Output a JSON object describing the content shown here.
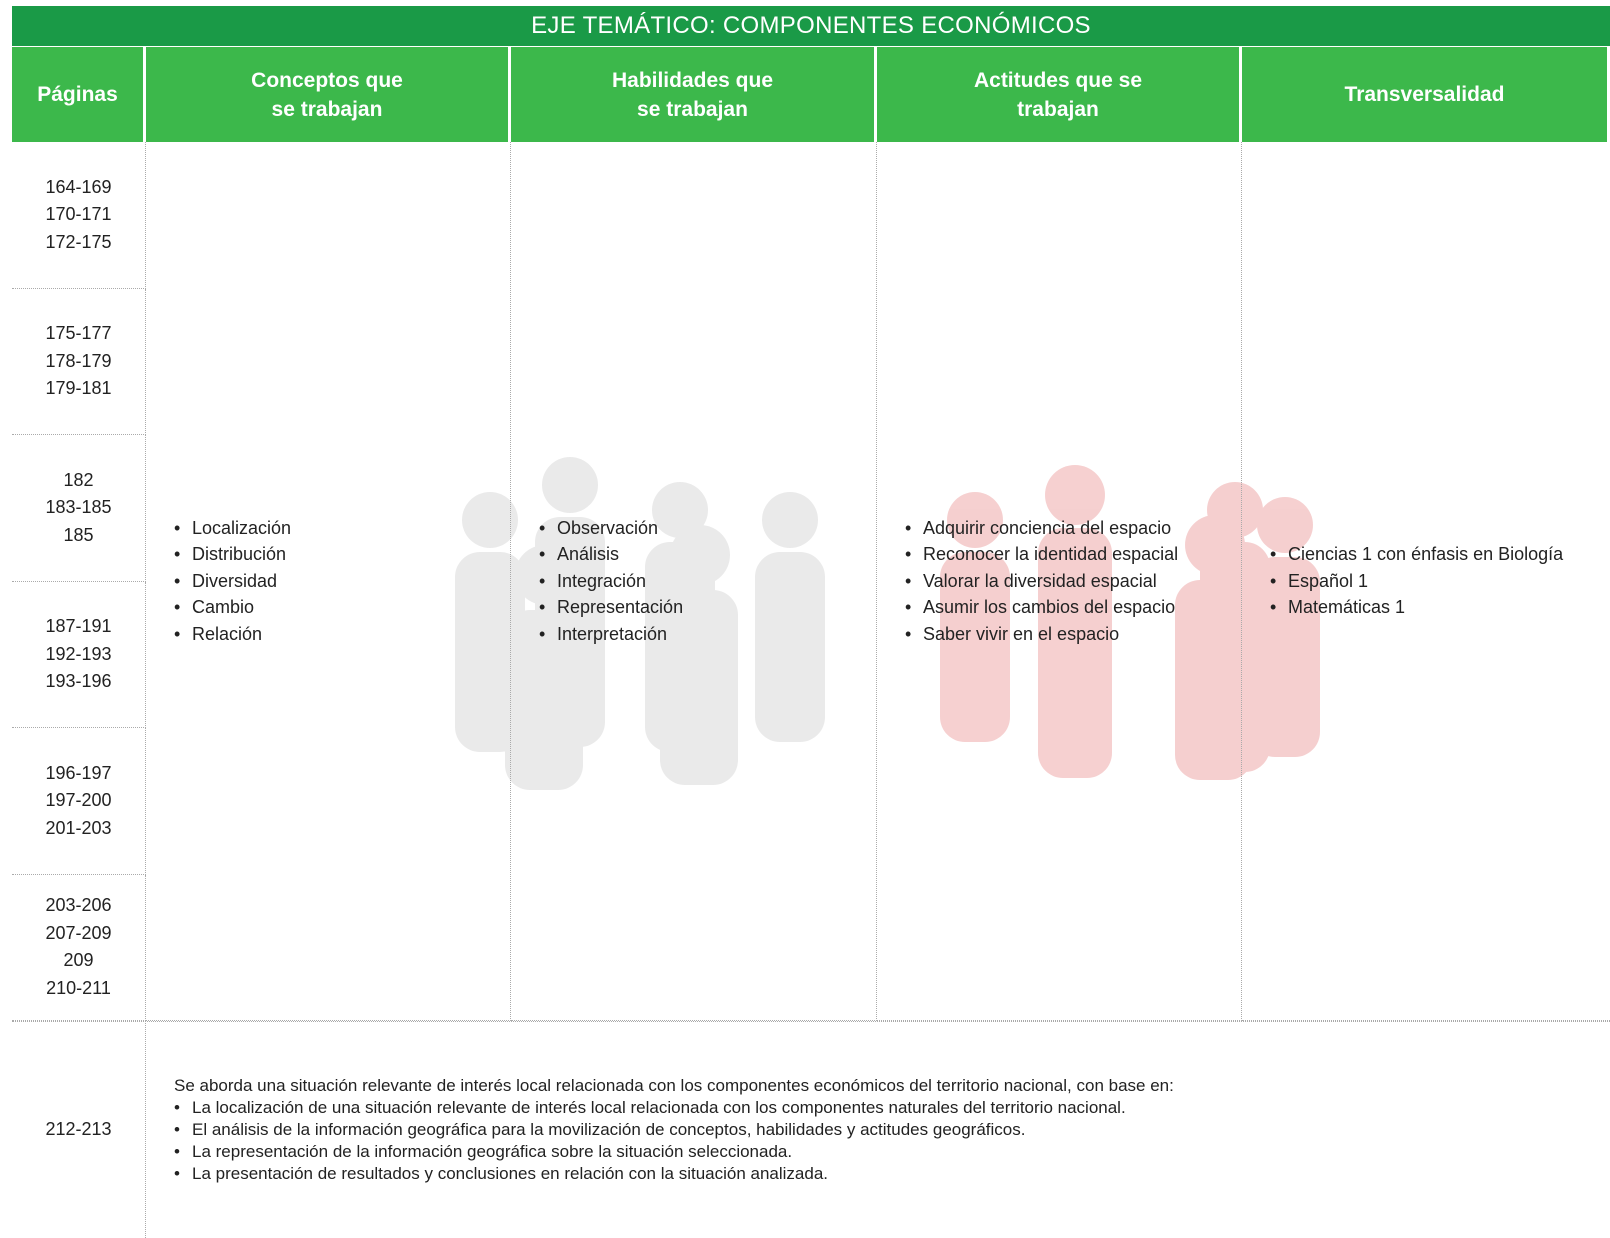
{
  "header": {
    "title": "EJE TEMÁTICO: COMPONENTES ECONÓMICOS"
  },
  "table": {
    "columns": [
      "Páginas",
      "Conceptos que se trabajan",
      "Habilidades que se trabajan",
      "Actitudes que se trabajan",
      "Transversalidad"
    ],
    "page_groups": [
      [
        "164-169",
        "170-171",
        "172-175"
      ],
      [
        "175-177",
        "178-179",
        "179-181"
      ],
      [
        "182",
        "183-185",
        "185"
      ],
      [
        "187-191",
        "192-193",
        "193-196"
      ],
      [
        "196-197",
        "197-200",
        "201-203"
      ],
      [
        "203-206",
        "207-209",
        "209",
        "210-211"
      ]
    ],
    "concepts": [
      "Localización",
      "Distribución",
      "Diversidad",
      "Cambio",
      "Relación"
    ],
    "skills": [
      "Observación",
      "Análisis",
      "Integración",
      "Representación",
      "Interpretación"
    ],
    "attitudes": [
      "Adquirir conciencia del espacio",
      "Reconocer la identidad espacial",
      "Valorar la diversidad espacial",
      "Asumir los cambios del espacio",
      "Saber vivir en el espacio"
    ],
    "transversal": [
      "Ciencias 1 con énfasis en Biología",
      "Español 1",
      "Matemáticas 1"
    ],
    "final_row": {
      "pages": "212-213",
      "intro": "Se aborda una situación relevante de interés local relacionada con los componentes económicos del territorio nacional, con base en:",
      "bullets": [
        "La localización de una situación relevante de interés local relacionada con los componentes naturales del territorio nacional.",
        "El análisis de la información geográfica para la movilización de conceptos, habilidades y actitudes geográficos.",
        "La representación de la información geográfica sobre la situación seleccionada.",
        "La presentación de resultados y conclusiones en relación con la situación analizada."
      ]
    }
  }
}
